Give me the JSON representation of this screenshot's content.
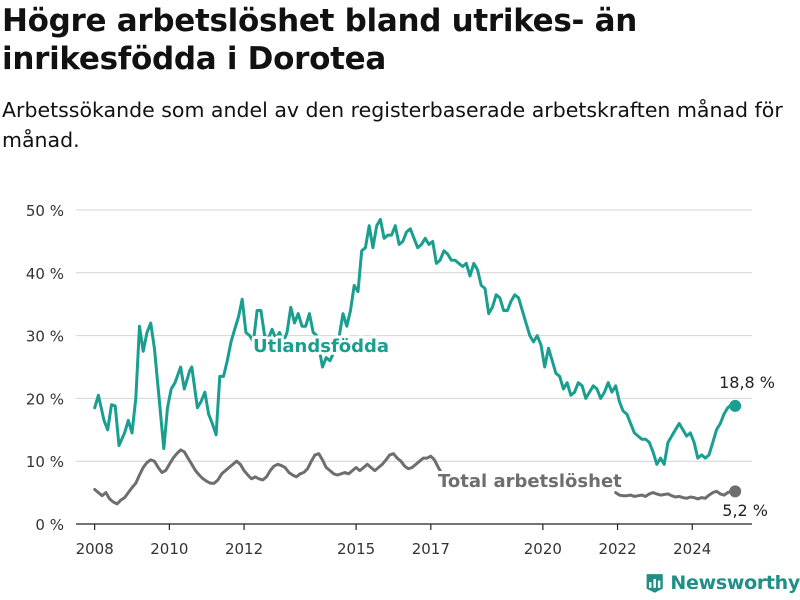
{
  "title": "Högre arbetslöshet bland utrikes- än inrikesfödda i Dorotea",
  "subtitle": "Arbetssökande som andel av den registerbaserade arbetskraften månad för månad.",
  "brand": "Newsworthy",
  "colors": {
    "utrikes": "#1a9e8f",
    "total": "#6e6e6e",
    "grid": "#d4d4d4",
    "brand": "#1f8f88"
  },
  "chart_data": {
    "type": "line",
    "title": "Högre arbetslöshet bland utrikes- än inrikesfödda i Dorotea",
    "subtitle": "Arbetssökande som andel av den registerbaserade arbetskraften månad för månad.",
    "xlabel": "",
    "ylabel": "",
    "xlim": [
      2007.5,
      2025.6
    ],
    "ylim": [
      0,
      50
    ],
    "x_ticks": [
      2008,
      2010,
      2012,
      2015,
      2017,
      2020,
      2022,
      2024
    ],
    "y_ticks": [
      0,
      10,
      20,
      30,
      40,
      50
    ],
    "y_tick_labels": [
      "0 %",
      "10 %",
      "20 %",
      "30 %",
      "40 %",
      "50 %"
    ],
    "grid": "horizontal",
    "series": [
      {
        "name": "Utlandsfödda",
        "label": "Utlandsfödda",
        "end_label": "18,8 %",
        "points": [
          [
            2008.0,
            18.5
          ],
          [
            2008.1,
            20.5
          ],
          [
            2008.25,
            16.5
          ],
          [
            2008.35,
            15.0
          ],
          [
            2008.45,
            19.0
          ],
          [
            2008.55,
            18.8
          ],
          [
            2008.65,
            12.5
          ],
          [
            2008.8,
            14.5
          ],
          [
            2008.9,
            16.5
          ],
          [
            2009.0,
            14.5
          ],
          [
            2009.1,
            20.0
          ],
          [
            2009.2,
            31.5
          ],
          [
            2009.3,
            27.5
          ],
          [
            2009.4,
            30.5
          ],
          [
            2009.5,
            32.0
          ],
          [
            2009.6,
            28.0
          ],
          [
            2009.75,
            18.5
          ],
          [
            2009.85,
            12.0
          ],
          [
            2009.95,
            18.5
          ],
          [
            2010.05,
            21.5
          ],
          [
            2010.15,
            22.5
          ],
          [
            2010.3,
            25.0
          ],
          [
            2010.4,
            21.5
          ],
          [
            2010.55,
            24.5
          ],
          [
            2010.6,
            25.0
          ],
          [
            2010.75,
            18.5
          ],
          [
            2010.85,
            19.5
          ],
          [
            2010.95,
            21.0
          ],
          [
            2011.05,
            17.5
          ],
          [
            2011.15,
            16.0
          ],
          [
            2011.25,
            14.2
          ],
          [
            2011.35,
            23.5
          ],
          [
            2011.45,
            23.5
          ],
          [
            2011.55,
            26.0
          ],
          [
            2011.65,
            29.0
          ],
          [
            2011.75,
            31.0
          ],
          [
            2011.85,
            33.0
          ],
          [
            2011.95,
            35.8
          ],
          [
            2012.05,
            30.5
          ],
          [
            2012.15,
            30.0
          ],
          [
            2012.25,
            29.0
          ],
          [
            2012.35,
            34.0
          ],
          [
            2012.45,
            34.0
          ],
          [
            2012.55,
            30.0
          ],
          [
            2012.65,
            29.5
          ],
          [
            2012.75,
            31.0
          ],
          [
            2012.85,
            29.5
          ],
          [
            2012.95,
            30.5
          ],
          [
            2013.05,
            29.0
          ],
          [
            2013.15,
            30.5
          ],
          [
            2013.25,
            34.5
          ],
          [
            2013.35,
            32.0
          ],
          [
            2013.45,
            33.5
          ],
          [
            2013.55,
            31.5
          ],
          [
            2013.65,
            31.5
          ],
          [
            2013.75,
            33.5
          ],
          [
            2013.85,
            30.5
          ],
          [
            2013.95,
            30.0
          ],
          [
            2014.1,
            25.0
          ],
          [
            2014.2,
            26.5
          ],
          [
            2014.3,
            26.0
          ],
          [
            2014.45,
            28.0
          ],
          [
            2014.55,
            30.0
          ],
          [
            2014.65,
            33.5
          ],
          [
            2014.75,
            31.5
          ],
          [
            2014.85,
            34.0
          ],
          [
            2014.95,
            38.0
          ],
          [
            2015.05,
            37.0
          ],
          [
            2015.15,
            43.5
          ],
          [
            2015.25,
            44.0
          ],
          [
            2015.35,
            47.5
          ],
          [
            2015.45,
            44.0
          ],
          [
            2015.55,
            47.5
          ],
          [
            2015.65,
            48.5
          ],
          [
            2015.75,
            45.5
          ],
          [
            2015.85,
            46.0
          ],
          [
            2015.95,
            46.0
          ],
          [
            2016.05,
            47.5
          ],
          [
            2016.15,
            44.5
          ],
          [
            2016.25,
            45.0
          ],
          [
            2016.35,
            46.5
          ],
          [
            2016.45,
            47.0
          ],
          [
            2016.55,
            45.5
          ],
          [
            2016.65,
            44.0
          ],
          [
            2016.75,
            44.5
          ],
          [
            2016.85,
            45.5
          ],
          [
            2016.95,
            44.5
          ],
          [
            2017.05,
            45.0
          ],
          [
            2017.15,
            41.5
          ],
          [
            2017.25,
            42.0
          ],
          [
            2017.35,
            43.5
          ],
          [
            2017.45,
            43.0
          ],
          [
            2017.55,
            42.0
          ],
          [
            2017.65,
            42.0
          ],
          [
            2017.75,
            41.5
          ],
          [
            2017.85,
            41.0
          ],
          [
            2017.95,
            41.5
          ],
          [
            2018.05,
            39.5
          ],
          [
            2018.15,
            41.5
          ],
          [
            2018.25,
            40.5
          ],
          [
            2018.35,
            38.0
          ],
          [
            2018.45,
            37.5
          ],
          [
            2018.55,
            33.5
          ],
          [
            2018.65,
            34.5
          ],
          [
            2018.75,
            36.5
          ],
          [
            2018.85,
            36.0
          ],
          [
            2018.95,
            34.0
          ],
          [
            2019.05,
            34.0
          ],
          [
            2019.15,
            35.5
          ],
          [
            2019.25,
            36.5
          ],
          [
            2019.35,
            36.0
          ],
          [
            2019.45,
            34.0
          ],
          [
            2019.55,
            32.0
          ],
          [
            2019.65,
            30.0
          ],
          [
            2019.75,
            29.0
          ],
          [
            2019.85,
            30.0
          ],
          [
            2019.95,
            28.5
          ],
          [
            2020.05,
            25.0
          ],
          [
            2020.15,
            28.0
          ],
          [
            2020.25,
            26.0
          ],
          [
            2020.35,
            24.0
          ],
          [
            2020.45,
            23.5
          ],
          [
            2020.55,
            21.5
          ],
          [
            2020.65,
            22.5
          ],
          [
            2020.75,
            20.5
          ],
          [
            2020.85,
            21.0
          ],
          [
            2020.95,
            22.5
          ],
          [
            2021.05,
            22.0
          ],
          [
            2021.15,
            20.0
          ],
          [
            2021.25,
            21.0
          ],
          [
            2021.35,
            22.0
          ],
          [
            2021.45,
            21.5
          ],
          [
            2021.55,
            20.0
          ],
          [
            2021.65,
            21.0
          ],
          [
            2021.75,
            22.5
          ],
          [
            2021.85,
            21.0
          ],
          [
            2021.95,
            22.0
          ],
          [
            2022.05,
            19.5
          ],
          [
            2022.15,
            18.0
          ],
          [
            2022.25,
            17.5
          ],
          [
            2022.35,
            16.0
          ],
          [
            2022.45,
            14.5
          ],
          [
            2022.55,
            14.0
          ],
          [
            2022.65,
            13.5
          ],
          [
            2022.75,
            13.5
          ],
          [
            2022.85,
            13.0
          ],
          [
            2022.95,
            11.5
          ],
          [
            2023.05,
            9.5
          ],
          [
            2023.15,
            10.5
          ],
          [
            2023.25,
            9.5
          ],
          [
            2023.35,
            13.0
          ],
          [
            2023.45,
            14.0
          ],
          [
            2023.55,
            15.0
          ],
          [
            2023.65,
            16.0
          ],
          [
            2023.75,
            15.0
          ],
          [
            2023.85,
            14.0
          ],
          [
            2023.95,
            14.5
          ],
          [
            2024.05,
            13.0
          ],
          [
            2024.15,
            10.5
          ],
          [
            2024.25,
            11.0
          ],
          [
            2024.35,
            10.5
          ],
          [
            2024.45,
            11.0
          ],
          [
            2024.55,
            13.0
          ],
          [
            2024.65,
            15.0
          ],
          [
            2024.75,
            16.0
          ],
          [
            2024.85,
            17.5
          ],
          [
            2024.95,
            18.5
          ],
          [
            2025.05,
            19.0
          ],
          [
            2025.15,
            18.8
          ]
        ]
      },
      {
        "name": "Total arbetslöshet",
        "label": "Total arbetslöshet",
        "end_label": "5,2 %",
        "points": [
          [
            2008.0,
            5.5
          ],
          [
            2008.1,
            5.0
          ],
          [
            2008.2,
            4.5
          ],
          [
            2008.3,
            5.0
          ],
          [
            2008.4,
            4.0
          ],
          [
            2008.5,
            3.5
          ],
          [
            2008.6,
            3.2
          ],
          [
            2008.7,
            3.8
          ],
          [
            2008.8,
            4.2
          ],
          [
            2008.9,
            5.0
          ],
          [
            2009.0,
            5.8
          ],
          [
            2009.1,
            6.5
          ],
          [
            2009.2,
            7.8
          ],
          [
            2009.3,
            9.0
          ],
          [
            2009.4,
            9.8
          ],
          [
            2009.5,
            10.2
          ],
          [
            2009.6,
            10.0
          ],
          [
            2009.7,
            9.0
          ],
          [
            2009.8,
            8.2
          ],
          [
            2009.9,
            8.5
          ],
          [
            2010.0,
            9.5
          ],
          [
            2010.1,
            10.5
          ],
          [
            2010.2,
            11.2
          ],
          [
            2010.3,
            11.8
          ],
          [
            2010.4,
            11.5
          ],
          [
            2010.5,
            10.5
          ],
          [
            2010.6,
            9.5
          ],
          [
            2010.7,
            8.5
          ],
          [
            2010.8,
            7.8
          ],
          [
            2010.9,
            7.2
          ],
          [
            2011.0,
            6.8
          ],
          [
            2011.1,
            6.5
          ],
          [
            2011.2,
            6.5
          ],
          [
            2011.3,
            7.0
          ],
          [
            2011.4,
            8.0
          ],
          [
            2011.5,
            8.5
          ],
          [
            2011.6,
            9.0
          ],
          [
            2011.7,
            9.5
          ],
          [
            2011.8,
            10.0
          ],
          [
            2011.9,
            9.5
          ],
          [
            2012.0,
            8.5
          ],
          [
            2012.1,
            7.8
          ],
          [
            2012.2,
            7.2
          ],
          [
            2012.3,
            7.5
          ],
          [
            2012.4,
            7.2
          ],
          [
            2012.5,
            7.0
          ],
          [
            2012.6,
            7.5
          ],
          [
            2012.7,
            8.5
          ],
          [
            2012.8,
            9.2
          ],
          [
            2012.9,
            9.5
          ],
          [
            2013.0,
            9.3
          ],
          [
            2013.1,
            9.0
          ],
          [
            2013.2,
            8.2
          ],
          [
            2013.3,
            7.8
          ],
          [
            2013.4,
            7.5
          ],
          [
            2013.5,
            8.0
          ],
          [
            2013.6,
            8.2
          ],
          [
            2013.7,
            8.8
          ],
          [
            2013.8,
            10.0
          ],
          [
            2013.9,
            11.0
          ],
          [
            2014.0,
            11.2
          ],
          [
            2014.1,
            10.2
          ],
          [
            2014.2,
            9.0
          ],
          [
            2014.3,
            8.5
          ],
          [
            2014.4,
            8.0
          ],
          [
            2014.5,
            7.8
          ],
          [
            2014.6,
            8.0
          ],
          [
            2014.7,
            8.2
          ],
          [
            2014.8,
            8.0
          ],
          [
            2014.9,
            8.5
          ],
          [
            2015.0,
            9.0
          ],
          [
            2015.1,
            8.5
          ],
          [
            2015.2,
            9.0
          ],
          [
            2015.3,
            9.5
          ],
          [
            2015.4,
            9.0
          ],
          [
            2015.5,
            8.5
          ],
          [
            2015.6,
            9.0
          ],
          [
            2015.7,
            9.5
          ],
          [
            2015.8,
            10.2
          ],
          [
            2015.9,
            11.0
          ],
          [
            2016.0,
            11.2
          ],
          [
            2016.1,
            10.5
          ],
          [
            2016.2,
            10.0
          ],
          [
            2016.3,
            9.2
          ],
          [
            2016.4,
            8.8
          ],
          [
            2016.5,
            9.0
          ],
          [
            2016.6,
            9.5
          ],
          [
            2016.7,
            10.0
          ],
          [
            2016.8,
            10.5
          ],
          [
            2016.9,
            10.5
          ],
          [
            2017.0,
            10.8
          ],
          [
            2017.1,
            10.2
          ],
          [
            2017.2,
            9.0
          ],
          [
            2017.3,
            8.0
          ],
          [
            2017.4,
            7.8
          ]
        ],
        "points_late": [
          [
            2021.95,
            5.0
          ],
          [
            2022.05,
            4.6
          ],
          [
            2022.15,
            4.5
          ],
          [
            2022.25,
            4.5
          ],
          [
            2022.35,
            4.6
          ],
          [
            2022.45,
            4.4
          ],
          [
            2022.55,
            4.5
          ],
          [
            2022.65,
            4.6
          ],
          [
            2022.75,
            4.4
          ],
          [
            2022.85,
            4.8
          ],
          [
            2022.95,
            5.0
          ],
          [
            2023.05,
            4.8
          ],
          [
            2023.15,
            4.6
          ],
          [
            2023.25,
            4.7
          ],
          [
            2023.35,
            4.8
          ],
          [
            2023.45,
            4.5
          ],
          [
            2023.55,
            4.3
          ],
          [
            2023.65,
            4.4
          ],
          [
            2023.75,
            4.2
          ],
          [
            2023.85,
            4.1
          ],
          [
            2023.95,
            4.3
          ],
          [
            2024.05,
            4.2
          ],
          [
            2024.15,
            4.0
          ],
          [
            2024.25,
            4.2
          ],
          [
            2024.35,
            4.1
          ],
          [
            2024.45,
            4.6
          ],
          [
            2024.55,
            5.0
          ],
          [
            2024.65,
            5.2
          ],
          [
            2024.75,
            4.8
          ],
          [
            2024.85,
            4.6
          ],
          [
            2024.95,
            5.0
          ],
          [
            2025.05,
            5.2
          ],
          [
            2025.15,
            5.2
          ]
        ]
      }
    ]
  }
}
